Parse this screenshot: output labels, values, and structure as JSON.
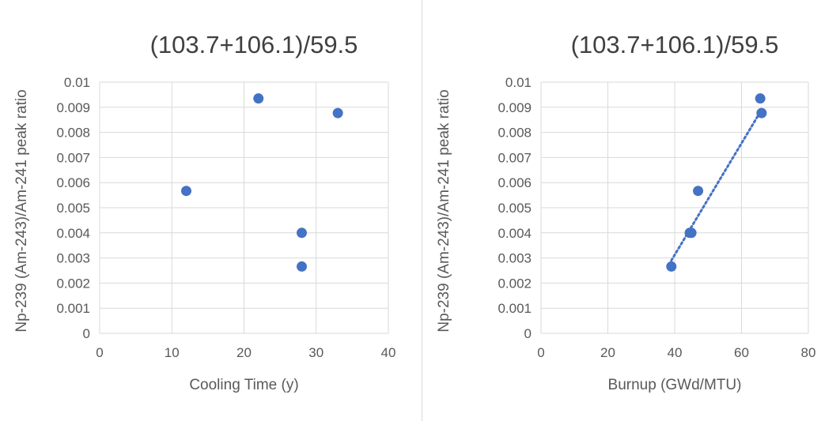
{
  "chart_data": [
    {
      "type": "scatter",
      "title": "(103.7+106.1)/59.5",
      "xlabel": "Cooling Time (y)",
      "ylabel": "Np-239 (Am-243)/Am-241 peak ratio",
      "xlim": [
        0,
        40
      ],
      "ylim": [
        0,
        0.01
      ],
      "xticks": [
        "0",
        "10",
        "20",
        "30",
        "40"
      ],
      "yticks": [
        "0",
        "0.001",
        "0.002",
        "0.003",
        "0.004",
        "0.005",
        "0.006",
        "0.007",
        "0.008",
        "0.009",
        "0.01"
      ],
      "grid": true,
      "trendline": false,
      "marker_color": "#4472C4",
      "series": [
        {
          "x": [
            12,
            22,
            33,
            28,
            28
          ],
          "y": [
            0.00567,
            0.00935,
            0.00877,
            0.004,
            0.00266
          ]
        }
      ]
    },
    {
      "type": "scatter",
      "title": "(103.7+106.1)/59.5",
      "xlabel": "Burnup (GWd/MTU)",
      "ylabel": "Np-239 (Am-243)/Am-241 peak ratio",
      "xlim": [
        0,
        80
      ],
      "ylim": [
        0,
        0.01
      ],
      "xticks": [
        "0",
        "20",
        "40",
        "60",
        "80"
      ],
      "yticks": [
        "0",
        "0.001",
        "0.002",
        "0.003",
        "0.004",
        "0.005",
        "0.006",
        "0.007",
        "0.008",
        "0.009",
        "0.01"
      ],
      "grid": true,
      "trendline": true,
      "trendline_style": "dotted linear",
      "marker_color": "#4472C4",
      "series": [
        {
          "x": [
            47,
            65.6,
            66,
            45,
            44.5,
            39
          ],
          "y": [
            0.00567,
            0.00935,
            0.00877,
            0.004,
            0.004,
            0.00266
          ]
        }
      ],
      "trend_points": {
        "x": [
          39,
          66
        ],
        "y": [
          0.0029,
          0.0089
        ]
      }
    }
  ]
}
